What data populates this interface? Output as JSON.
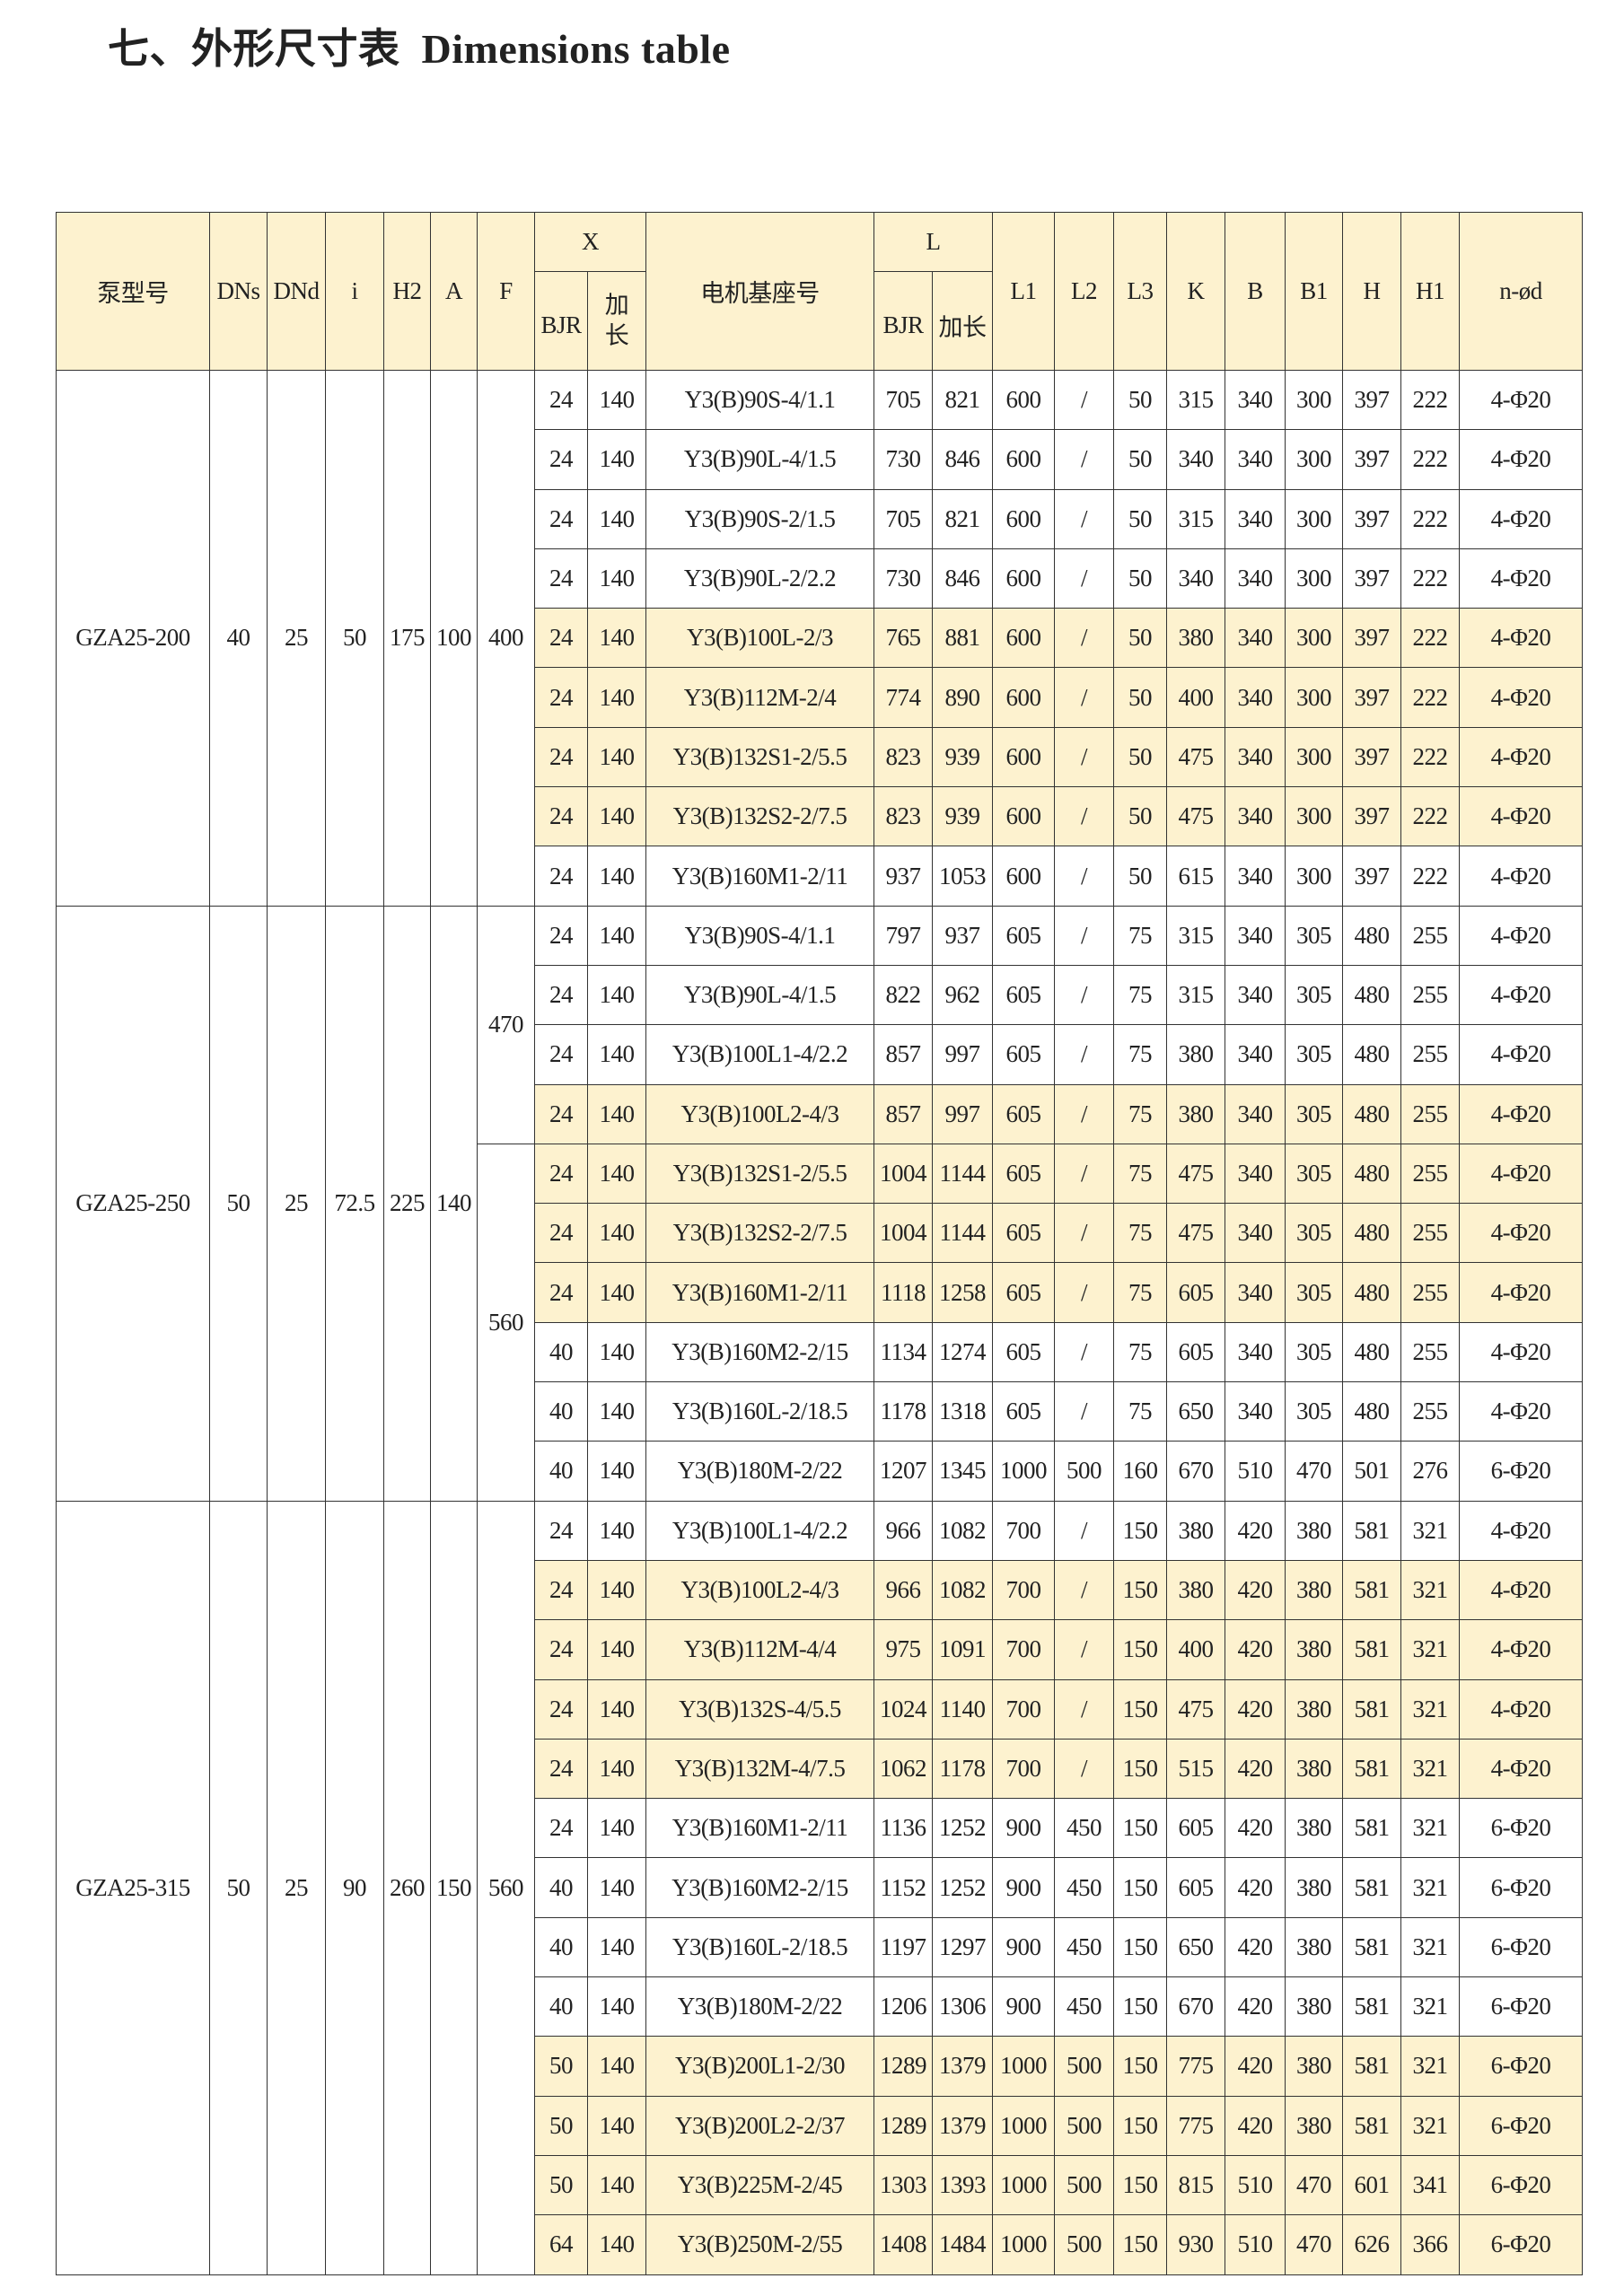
{
  "title": "七、外形尺寸表  Dimensions table",
  "colors": {
    "header_bg": "#fdf2cf",
    "highlight_bg": "#fdf2cf",
    "border": "#333333"
  },
  "header": {
    "pump_model": "泵型号",
    "dns": "DNs",
    "dnd": "DNd",
    "i": "i",
    "h2": "H2",
    "a": "A",
    "f": "F",
    "x": "X",
    "x_bjr": "BJR",
    "x_ext_1": "加",
    "x_ext_2": "长",
    "motor": "电机基座号",
    "l": "L",
    "l_bjr": "BJR",
    "l_ext": "加长",
    "l1": "L1",
    "l2": "L2",
    "l3": "L3",
    "k": "K",
    "b": "B",
    "b1": "B1",
    "h": "H",
    "h1": "H1",
    "nd": "n-ød"
  },
  "groups": [
    {
      "model": "GZA25-200",
      "dns": "40",
      "dnd": "25",
      "i": "50",
      "h2": "175",
      "a": "100",
      "f": [
        {
          "value": "400",
          "rows": 9
        }
      ],
      "rows": [
        {
          "hl": false,
          "cells": [
            "24",
            "140",
            "Y3(B)90S-4/1.1",
            "705",
            "821",
            "600",
            "/",
            "50",
            "315",
            "340",
            "300",
            "397",
            "222",
            "4-Φ20"
          ]
        },
        {
          "hl": false,
          "cells": [
            "24",
            "140",
            "Y3(B)90L-4/1.5",
            "730",
            "846",
            "600",
            "/",
            "50",
            "340",
            "340",
            "300",
            "397",
            "222",
            "4-Φ20"
          ]
        },
        {
          "hl": false,
          "cells": [
            "24",
            "140",
            "Y3(B)90S-2/1.5",
            "705",
            "821",
            "600",
            "/",
            "50",
            "315",
            "340",
            "300",
            "397",
            "222",
            "4-Φ20"
          ]
        },
        {
          "hl": false,
          "cells": [
            "24",
            "140",
            "Y3(B)90L-2/2.2",
            "730",
            "846",
            "600",
            "/",
            "50",
            "340",
            "340",
            "300",
            "397",
            "222",
            "4-Φ20"
          ]
        },
        {
          "hl": true,
          "cells": [
            "24",
            "140",
            "Y3(B)100L-2/3",
            "765",
            "881",
            "600",
            "/",
            "50",
            "380",
            "340",
            "300",
            "397",
            "222",
            "4-Φ20"
          ]
        },
        {
          "hl": true,
          "cells": [
            "24",
            "140",
            "Y3(B)112M-2/4",
            "774",
            "890",
            "600",
            "/",
            "50",
            "400",
            "340",
            "300",
            "397",
            "222",
            "4-Φ20"
          ]
        },
        {
          "hl": true,
          "cells": [
            "24",
            "140",
            "Y3(B)132S1-2/5.5",
            "823",
            "939",
            "600",
            "/",
            "50",
            "475",
            "340",
            "300",
            "397",
            "222",
            "4-Φ20"
          ]
        },
        {
          "hl": true,
          "cells": [
            "24",
            "140",
            "Y3(B)132S2-2/7.5",
            "823",
            "939",
            "600",
            "/",
            "50",
            "475",
            "340",
            "300",
            "397",
            "222",
            "4-Φ20"
          ]
        },
        {
          "hl": false,
          "cells": [
            "24",
            "140",
            "Y3(B)160M1-2/11",
            "937",
            "1053",
            "600",
            "/",
            "50",
            "615",
            "340",
            "300",
            "397",
            "222",
            "4-Φ20"
          ]
        }
      ]
    },
    {
      "model": "GZA25-250",
      "dns": "50",
      "dnd": "25",
      "i": "72.5",
      "h2": "225",
      "a": "140",
      "f": [
        {
          "value": "470",
          "rows": 4
        },
        {
          "value": "560",
          "rows": 6
        }
      ],
      "rows": [
        {
          "hl": false,
          "cells": [
            "24",
            "140",
            "Y3(B)90S-4/1.1",
            "797",
            "937",
            "605",
            "/",
            "75",
            "315",
            "340",
            "305",
            "480",
            "255",
            "4-Φ20"
          ]
        },
        {
          "hl": false,
          "cells": [
            "24",
            "140",
            "Y3(B)90L-4/1.5",
            "822",
            "962",
            "605",
            "/",
            "75",
            "315",
            "340",
            "305",
            "480",
            "255",
            "4-Φ20"
          ]
        },
        {
          "hl": false,
          "cells": [
            "24",
            "140",
            "Y3(B)100L1-4/2.2",
            "857",
            "997",
            "605",
            "/",
            "75",
            "380",
            "340",
            "305",
            "480",
            "255",
            "4-Φ20"
          ]
        },
        {
          "hl": true,
          "cells": [
            "24",
            "140",
            "Y3(B)100L2-4/3",
            "857",
            "997",
            "605",
            "/",
            "75",
            "380",
            "340",
            "305",
            "480",
            "255",
            "4-Φ20"
          ]
        },
        {
          "hl": true,
          "cells": [
            "24",
            "140",
            "Y3(B)132S1-2/5.5",
            "1004",
            "1144",
            "605",
            "/",
            "75",
            "475",
            "340",
            "305",
            "480",
            "255",
            "4-Φ20"
          ]
        },
        {
          "hl": true,
          "cells": [
            "24",
            "140",
            "Y3(B)132S2-2/7.5",
            "1004",
            "1144",
            "605",
            "/",
            "75",
            "475",
            "340",
            "305",
            "480",
            "255",
            "4-Φ20"
          ]
        },
        {
          "hl": true,
          "cells": [
            "24",
            "140",
            "Y3(B)160M1-2/11",
            "1118",
            "1258",
            "605",
            "/",
            "75",
            "605",
            "340",
            "305",
            "480",
            "255",
            "4-Φ20"
          ]
        },
        {
          "hl": false,
          "cells": [
            "40",
            "140",
            "Y3(B)160M2-2/15",
            "1134",
            "1274",
            "605",
            "/",
            "75",
            "605",
            "340",
            "305",
            "480",
            "255",
            "4-Φ20"
          ]
        },
        {
          "hl": false,
          "cells": [
            "40",
            "140",
            "Y3(B)160L-2/18.5",
            "1178",
            "1318",
            "605",
            "/",
            "75",
            "650",
            "340",
            "305",
            "480",
            "255",
            "4-Φ20"
          ]
        },
        {
          "hl": false,
          "cells": [
            "40",
            "140",
            "Y3(B)180M-2/22",
            "1207",
            "1345",
            "1000",
            "500",
            "160",
            "670",
            "510",
            "470",
            "501",
            "276",
            "6-Φ20"
          ]
        }
      ]
    },
    {
      "model": "GZA25-315",
      "dns": "50",
      "dnd": "25",
      "i": "90",
      "h2": "260",
      "a": "150",
      "f": [
        {
          "value": "560",
          "rows": 13
        }
      ],
      "rows": [
        {
          "hl": false,
          "cells": [
            "24",
            "140",
            "Y3(B)100L1-4/2.2",
            "966",
            "1082",
            "700",
            "/",
            "150",
            "380",
            "420",
            "380",
            "581",
            "321",
            "4-Φ20"
          ]
        },
        {
          "hl": true,
          "cells": [
            "24",
            "140",
            "Y3(B)100L2-4/3",
            "966",
            "1082",
            "700",
            "/",
            "150",
            "380",
            "420",
            "380",
            "581",
            "321",
            "4-Φ20"
          ]
        },
        {
          "hl": true,
          "cells": [
            "24",
            "140",
            "Y3(B)112M-4/4",
            "975",
            "1091",
            "700",
            "/",
            "150",
            "400",
            "420",
            "380",
            "581",
            "321",
            "4-Φ20"
          ]
        },
        {
          "hl": true,
          "cells": [
            "24",
            "140",
            "Y3(B)132S-4/5.5",
            "1024",
            "1140",
            "700",
            "/",
            "150",
            "475",
            "420",
            "380",
            "581",
            "321",
            "4-Φ20"
          ]
        },
        {
          "hl": true,
          "cells": [
            "24",
            "140",
            "Y3(B)132M-4/7.5",
            "1062",
            "1178",
            "700",
            "/",
            "150",
            "515",
            "420",
            "380",
            "581",
            "321",
            "4-Φ20"
          ]
        },
        {
          "hl": false,
          "cells": [
            "24",
            "140",
            "Y3(B)160M1-2/11",
            "1136",
            "1252",
            "900",
            "450",
            "150",
            "605",
            "420",
            "380",
            "581",
            "321",
            "6-Φ20"
          ]
        },
        {
          "hl": false,
          "cells": [
            "40",
            "140",
            "Y3(B)160M2-2/15",
            "1152",
            "1252",
            "900",
            "450",
            "150",
            "605",
            "420",
            "380",
            "581",
            "321",
            "6-Φ20"
          ]
        },
        {
          "hl": false,
          "cells": [
            "40",
            "140",
            "Y3(B)160L-2/18.5",
            "1197",
            "1297",
            "900",
            "450",
            "150",
            "650",
            "420",
            "380",
            "581",
            "321",
            "6-Φ20"
          ]
        },
        {
          "hl": false,
          "cells": [
            "40",
            "140",
            "Y3(B)180M-2/22",
            "1206",
            "1306",
            "900",
            "450",
            "150",
            "670",
            "420",
            "380",
            "581",
            "321",
            "6-Φ20"
          ]
        },
        {
          "hl": true,
          "cells": [
            "50",
            "140",
            "Y3(B)200L1-2/30",
            "1289",
            "1379",
            "1000",
            "500",
            "150",
            "775",
            "420",
            "380",
            "581",
            "321",
            "6-Φ20"
          ]
        },
        {
          "hl": true,
          "cells": [
            "50",
            "140",
            "Y3(B)200L2-2/37",
            "1289",
            "1379",
            "1000",
            "500",
            "150",
            "775",
            "420",
            "380",
            "581",
            "321",
            "6-Φ20"
          ]
        },
        {
          "hl": true,
          "cells": [
            "50",
            "140",
            "Y3(B)225M-2/45",
            "1303",
            "1393",
            "1000",
            "500",
            "150",
            "815",
            "510",
            "470",
            "601",
            "341",
            "6-Φ20"
          ]
        },
        {
          "hl": true,
          "cells": [
            "64",
            "140",
            "Y3(B)250M-2/55",
            "1408",
            "1484",
            "1000",
            "500",
            "150",
            "930",
            "510",
            "470",
            "626",
            "366",
            "6-Φ20"
          ]
        }
      ]
    }
  ]
}
